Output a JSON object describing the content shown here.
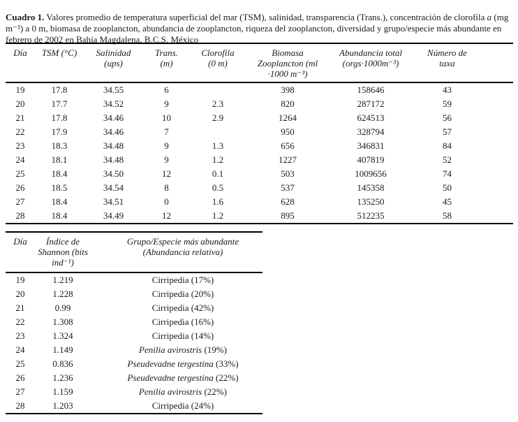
{
  "caption": {
    "segments": [
      {
        "b": true,
        "t": "Cuadro 1."
      },
      {
        "t": " Valores promedio de temperatura superficial del  mar (TSM), salinidad, transparencia (Trans.), concentración de clorofila "
      },
      {
        "i": true,
        "t": "a"
      },
      {
        "t": " (mg m⁻³) a 0 m, biomasa de zooplancton, abundancia de zooplancton, riqueza del zooplancton, diversidad y grupo/especie más abundante en febrero de 2002 en Bahía Magdalena, B.C.S. México"
      }
    ]
  },
  "table1": {
    "headers": [
      "Día",
      "TSM (°C)",
      "Salinidad\n(ups)",
      "Trans.\n(m)",
      "Clorofila\n(0 m)",
      "Biomasa\nZooplancton (ml\n·1000 m⁻³)",
      "Abundancia total\n(orgs·1000m⁻³)",
      "Número de\ntaxa"
    ],
    "rows": [
      [
        "19",
        "17.8",
        "34.55",
        "6",
        "",
        "398",
        "158646",
        "43"
      ],
      [
        "20",
        "17.7",
        "34.52",
        "9",
        "2.3",
        "820",
        "287172",
        "59"
      ],
      [
        "21",
        "17.8",
        "34.46",
        "10",
        "2.9",
        "1264",
        "624513",
        "56"
      ],
      [
        "22",
        "17.9",
        "34.46",
        "7",
        "",
        "950",
        "328794",
        "57"
      ],
      [
        "23",
        "18.3",
        "34.48",
        "9",
        "1.3",
        "656",
        "346831",
        "84"
      ],
      [
        "24",
        "18.1",
        "34.48",
        "9",
        "1.2",
        "1227",
        "407819",
        "52"
      ],
      [
        "25",
        "18.4",
        "34.50",
        "12",
        "0.1",
        "503",
        "1009656",
        "74"
      ],
      [
        "26",
        "18.5",
        "34.54",
        "8",
        "0.5",
        "537",
        "145358",
        "50"
      ],
      [
        "27",
        "18.4",
        "34.51",
        "0",
        "1.6",
        "628",
        "135250",
        "45"
      ],
      [
        "28",
        "18.4",
        "34.49",
        "12",
        "1.2",
        "895",
        "512235",
        "58"
      ]
    ]
  },
  "table2": {
    "headers": [
      "Día",
      "Índice de\nShannon (bits\nind⁻¹)",
      "Grupo/Especie más abundante\n(Abundancia relativa)"
    ],
    "rows": [
      {
        "dia": "19",
        "shannon": "1.219",
        "grupo": "Cirripedia",
        "rel": "(17%)",
        "italic": false
      },
      {
        "dia": "20",
        "shannon": "1.228",
        "grupo": "Cirripedia",
        "rel": "(20%)",
        "italic": false
      },
      {
        "dia": "21",
        "shannon": "0.99",
        "grupo": "Cirripedia",
        "rel": "(42%)",
        "italic": false
      },
      {
        "dia": "22",
        "shannon": "1.308",
        "grupo": "Cirripedia",
        "rel": "(16%)",
        "italic": false
      },
      {
        "dia": "23",
        "shannon": "1.324",
        "grupo": "Cirripedia",
        "rel": "(14%)",
        "italic": false
      },
      {
        "dia": "24",
        "shannon": "1.149",
        "grupo": "Penilia avirostris",
        "rel": "(19%)",
        "italic": true
      },
      {
        "dia": "25",
        "shannon": "0.836",
        "grupo": "Pseudevadne tergestina",
        "rel": "(33%)",
        "italic": true
      },
      {
        "dia": "26",
        "shannon": "1.236",
        "grupo": "Pseudevadne tergestina",
        "rel": "(22%)",
        "italic": true
      },
      {
        "dia": "27",
        "shannon": "1.159",
        "grupo": "Penilia avirostris",
        "rel": "(22%)",
        "italic": true
      },
      {
        "dia": "28",
        "shannon": "1.203",
        "grupo": "Cirripedia",
        "rel": "(24%)",
        "italic": false
      }
    ]
  },
  "colors": {
    "text": "#1b1b1b",
    "rule": "#000000",
    "background": "#ffffff"
  }
}
